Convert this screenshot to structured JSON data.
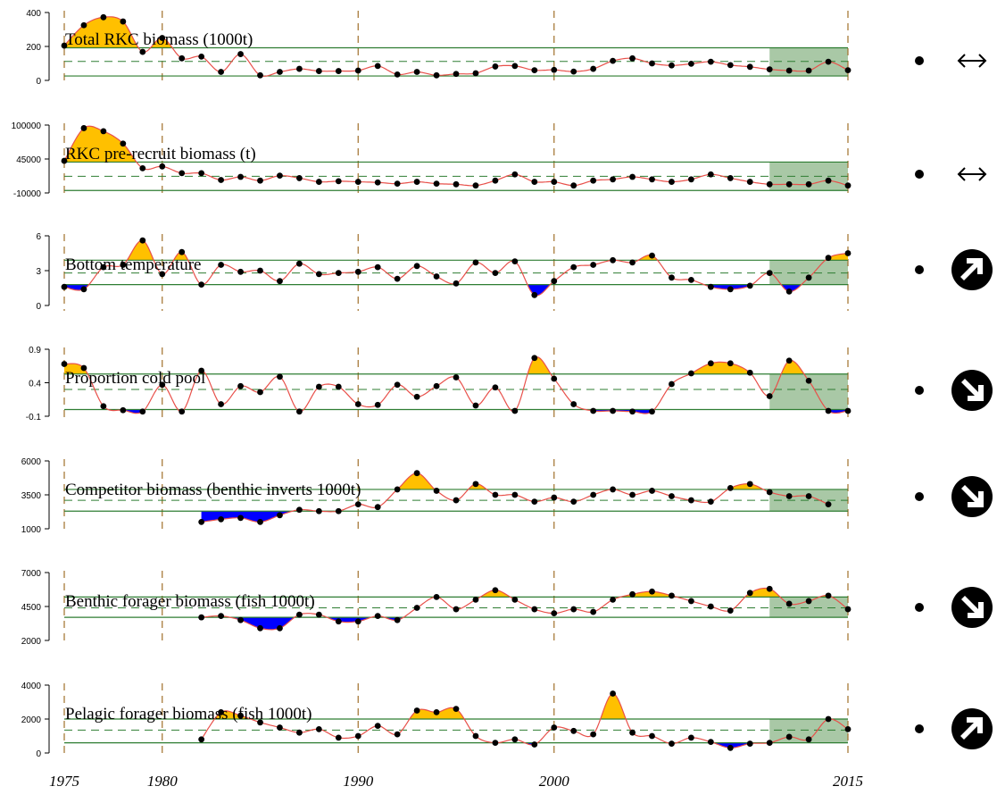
{
  "chart_data": {
    "type": "line",
    "x_range": [
      1975,
      2015
    ],
    "x_tick_labels": [
      "1975",
      "1980",
      "1990",
      "2000",
      "2015"
    ],
    "recent_window_start_year": 2011,
    "colors": {
      "line": "#e8504a",
      "point": "#000000",
      "above": "#ffc000",
      "below": "#0000ff",
      "sd_lines": "#2e7d32",
      "mean_line": "#2e7d32",
      "recent_shade": "#a9c8a6",
      "year_lines": "#a0702a"
    },
    "panels": [
      {
        "title": "Total RKC biomass (1000t)",
        "yticks": [
          0,
          200,
          400
        ],
        "ylim": [
          0,
          400
        ],
        "mean": 112,
        "sd_upper": 192,
        "sd_lower": 26,
        "start_year": 1975,
        "values": [
          205,
          325,
          372,
          347,
          168,
          250,
          130,
          140,
          50,
          155,
          30,
          50,
          68,
          55,
          55,
          58,
          85,
          35,
          50,
          30,
          38,
          42,
          82,
          85,
          60,
          62,
          52,
          68,
          115,
          130,
          100,
          88,
          98,
          110,
          90,
          80,
          65,
          58,
          58,
          110,
          60
        ],
        "trend_icon": "double-arrow-horizontal-icon",
        "mean_icon": "dot-icon"
      },
      {
        "title": "RKC pre-recruit biomass (t)",
        "yticks": [
          -10000,
          45000,
          100000
        ],
        "ytick_labels": [
          "-10000",
          "45000",
          "100000"
        ],
        "ylim": [
          -10000,
          100000
        ],
        "mean": 17000,
        "sd_upper": 40000,
        "sd_lower": -6000,
        "start_year": 1975,
        "values": [
          42000,
          95000,
          90000,
          70000,
          30000,
          33000,
          22000,
          22000,
          11000,
          16000,
          10000,
          18000,
          14000,
          8000,
          9000,
          8000,
          7000,
          5000,
          8000,
          5000,
          4000,
          2000,
          10000,
          20000,
          8000,
          8000,
          2000,
          10000,
          12000,
          16000,
          12000,
          8000,
          12000,
          20000,
          14000,
          8000,
          4000,
          4000,
          4000,
          10000,
          2000
        ],
        "trend_icon": "double-arrow-horizontal-icon",
        "mean_icon": "dot-icon"
      },
      {
        "title": "Bottom temperature",
        "yticks": [
          0,
          3,
          6
        ],
        "ylim": [
          0,
          6
        ],
        "mean": 2.8,
        "sd_upper": 3.9,
        "sd_lower": 1.8,
        "start_year": 1975,
        "values": [
          1.6,
          1.4,
          3.3,
          3.5,
          5.6,
          2.7,
          4.6,
          1.8,
          3.5,
          2.9,
          3.0,
          2.1,
          3.6,
          2.7,
          2.8,
          2.9,
          3.3,
          2.3,
          3.4,
          2.5,
          1.9,
          3.7,
          2.8,
          3.8,
          0.9,
          2.1,
          3.3,
          3.5,
          3.9,
          3.7,
          4.3,
          2.4,
          2.2,
          1.6,
          1.4,
          1.7,
          2.8,
          1.2,
          2.4,
          4.1,
          4.5
        ],
        "trend_icon": "arrow-up-right-circle-icon",
        "mean_icon": "dot-icon"
      },
      {
        "title": "Proportion cold pool",
        "yticks": [
          -0.1,
          0.4,
          0.9
        ],
        "ylim": [
          -0.1,
          0.9
        ],
        "mean": 0.3,
        "sd_upper": 0.53,
        "sd_lower": 0.0,
        "start_year": 1975,
        "values": [
          0.68,
          0.62,
          0.05,
          -0.01,
          -0.03,
          0.37,
          -0.03,
          0.58,
          0.08,
          0.35,
          0.26,
          0.49,
          -0.03,
          0.34,
          0.34,
          0.08,
          0.07,
          0.37,
          0.19,
          0.35,
          0.48,
          0.06,
          0.33,
          -0.02,
          0.77,
          0.46,
          0.08,
          -0.02,
          -0.02,
          -0.03,
          -0.03,
          0.38,
          0.54,
          0.69,
          0.69,
          0.55,
          0.2,
          0.73,
          0.43,
          -0.02,
          -0.02
        ],
        "trend_icon": "arrow-down-right-circle-icon",
        "mean_icon": "dot-icon"
      },
      {
        "title": "Competitor biomass (benthic inverts 1000t)",
        "yticks": [
          1000,
          3500,
          6000
        ],
        "ylim": [
          1000,
          6000
        ],
        "mean": 3100,
        "sd_upper": 3900,
        "sd_lower": 2300,
        "start_year": 1982,
        "values": [
          1500,
          1700,
          1800,
          1500,
          2000,
          2400,
          2300,
          2300,
          2800,
          2600,
          3900,
          5100,
          3800,
          3100,
          4300,
          3500,
          3500,
          3000,
          3300,
          3000,
          3500,
          3900,
          3500,
          3800,
          3400,
          3100,
          3000,
          4000,
          4300,
          3700,
          3400,
          3400,
          2800
        ],
        "trend_icon": "arrow-down-right-circle-icon",
        "mean_icon": "dot-icon"
      },
      {
        "title": "Benthic forager biomass (fish 1000t)",
        "yticks": [
          2000,
          4500,
          7000
        ],
        "ylim": [
          2000,
          7000
        ],
        "mean": 4400,
        "sd_upper": 5200,
        "sd_lower": 3700,
        "start_year": 1982,
        "values": [
          3700,
          3800,
          3500,
          2900,
          2900,
          3900,
          3900,
          3400,
          3400,
          3800,
          3500,
          4400,
          5200,
          4300,
          5000,
          5700,
          5000,
          4300,
          4000,
          4300,
          4100,
          5000,
          5400,
          5600,
          5300,
          4900,
          4500,
          4200,
          5500,
          5800,
          4700,
          4900,
          5300,
          4300
        ],
        "start_year_note": "",
        "trend_icon": "arrow-down-right-circle-icon",
        "mean_icon": "dot-icon"
      },
      {
        "title": "Pelagic forager biomass (fish 1000t)",
        "yticks": [
          0,
          2000,
          4000
        ],
        "ylim": [
          0,
          4000
        ],
        "mean": 1350,
        "sd_upper": 2000,
        "sd_lower": 600,
        "start_year": 1982,
        "values": [
          800,
          2400,
          2200,
          1800,
          1500,
          1200,
          1400,
          900,
          1000,
          1600,
          1100,
          2500,
          2400,
          2600,
          1000,
          600,
          800,
          500,
          1500,
          1300,
          1100,
          3500,
          1200,
          1000,
          550,
          900,
          650,
          300,
          550,
          600,
          950,
          800,
          2000,
          1400
        ],
        "trend_icon": "arrow-up-right-circle-icon",
        "mean_icon": "dot-icon"
      }
    ]
  }
}
